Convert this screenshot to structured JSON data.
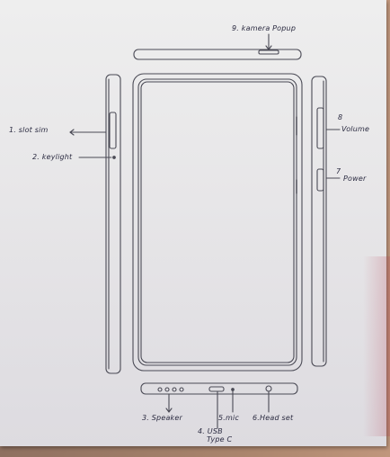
{
  "labels": {
    "camera_popup": "9. kamera Popup",
    "slot_sim": "1. slot sim",
    "keylight": "2. keylight",
    "volume_number": "8",
    "volume": "Volume",
    "power_number": "7",
    "power": "Power",
    "speaker": "3. Speaker",
    "usb_line1": "4. USB",
    "usb_line2": "Type C",
    "mic": "5.mic",
    "headset": "6.Head set"
  }
}
